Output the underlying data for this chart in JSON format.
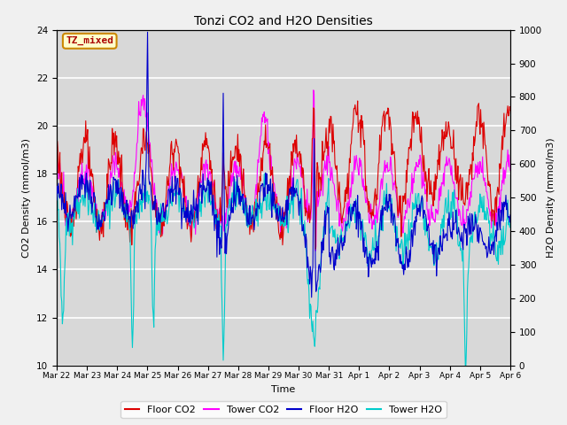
{
  "title": "Tonzi CO2 and H2O Densities",
  "xlabel": "Time",
  "ylabel_left": "CO2 Density (mmol/m3)",
  "ylabel_right": "H2O Density (mmol/m3)",
  "ylim_left": [
    10,
    24
  ],
  "ylim_right": [
    0,
    1000
  ],
  "yticks_left": [
    10,
    12,
    14,
    16,
    18,
    20,
    22,
    24
  ],
  "yticks_right": [
    0,
    100,
    200,
    300,
    400,
    500,
    600,
    700,
    800,
    900,
    1000
  ],
  "xtick_labels": [
    "Mar 22",
    "Mar 23",
    "Mar 24",
    "Mar 25",
    "Mar 26",
    "Mar 27",
    "Mar 28",
    "Mar 29",
    "Mar 30",
    "Mar 31",
    "Apr 1",
    "Apr 2",
    "Apr 3",
    "Apr 4",
    "Apr 5",
    "Apr 6"
  ],
  "colors": {
    "floor_co2": "#DD0000",
    "tower_co2": "#FF00FF",
    "floor_h2o": "#0000CC",
    "tower_h2o": "#00CCCC"
  },
  "legend_labels": [
    "Floor CO2",
    "Tower CO2",
    "Floor H2O",
    "Tower H2O"
  ],
  "annotation_text": "TZ_mixed",
  "fig_facecolor": "#F0F0F0",
  "plot_facecolor": "#D8D8D8",
  "grid_color": "#BBBBBB"
}
